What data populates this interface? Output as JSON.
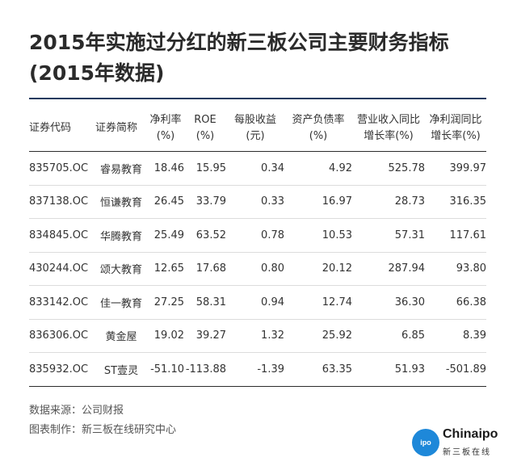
{
  "title": {
    "line1": "2015年实施过分红的新三板公司主要财务指标",
    "line2": "(2015年数据)"
  },
  "table": {
    "headers": {
      "code": "证券代码",
      "name": "证券简称",
      "net_margin": [
        "净利率",
        "(%)"
      ],
      "roe": [
        "ROE",
        "(%)"
      ],
      "eps": [
        "每股收益",
        "(元)"
      ],
      "debt_ratio": [
        "资产负债率",
        "(%)"
      ],
      "revenue_growth": [
        "营业收入同比",
        "增长率(%)"
      ],
      "profit_growth": [
        "净利润同比",
        "增长率(%)"
      ]
    },
    "rows": [
      {
        "code": "835705.OC",
        "name": "睿易教育",
        "net_margin": "18.46",
        "roe": "15.95",
        "eps": "0.34",
        "debt_ratio": "4.92",
        "revenue_growth": "525.78",
        "profit_growth": "399.97"
      },
      {
        "code": "837138.OC",
        "name": "恒谦教育",
        "net_margin": "26.45",
        "roe": "33.79",
        "eps": "0.33",
        "debt_ratio": "16.97",
        "revenue_growth": "28.73",
        "profit_growth": "316.35"
      },
      {
        "code": "834845.OC",
        "name": "华腾教育",
        "net_margin": "25.49",
        "roe": "63.52",
        "eps": "0.78",
        "debt_ratio": "10.53",
        "revenue_growth": "57.31",
        "profit_growth": "117.61"
      },
      {
        "code": "430244.OC",
        "name": "颂大教育",
        "net_margin": "12.65",
        "roe": "17.68",
        "eps": "0.80",
        "debt_ratio": "20.12",
        "revenue_growth": "287.94",
        "profit_growth": "93.80"
      },
      {
        "code": "833142.OC",
        "name": "佳一教育",
        "net_margin": "27.25",
        "roe": "58.31",
        "eps": "0.94",
        "debt_ratio": "12.74",
        "revenue_growth": "36.30",
        "profit_growth": "66.38"
      },
      {
        "code": "836306.OC",
        "name": "黄金屋",
        "net_margin": "19.02",
        "roe": "39.27",
        "eps": "1.32",
        "debt_ratio": "25.92",
        "revenue_growth": "6.85",
        "profit_growth": "8.39"
      },
      {
        "code": "835932.OC",
        "name": "ST壹灵",
        "net_margin": "-51.10",
        "roe": "-113.88",
        "eps": "-1.39",
        "debt_ratio": "63.35",
        "revenue_growth": "51.93",
        "profit_growth": "-501.89"
      }
    ]
  },
  "footer": {
    "source": "数据来源：公司财报",
    "author": "图表制作：新三板在线研究中心"
  },
  "logo": {
    "circle_text": "ipo",
    "brand": "Chinaipo",
    "sub": "新三板在线"
  },
  "colors": {
    "accent_rule": "#1f3a5f",
    "logo_blue": "#1e88d9"
  }
}
